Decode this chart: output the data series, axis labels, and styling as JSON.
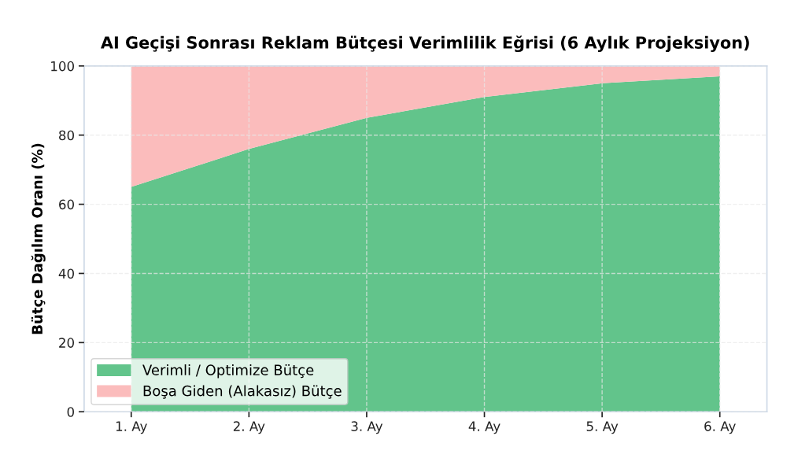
{
  "chart_data": {
    "type": "area",
    "title": "AI Geçişi Sonrası Reklam Bütçesi Verimlilik Eğrisi (6 Aylık Projeksiyon)",
    "ylabel": "Bütçe Dağılım Oranı (%)",
    "categories": [
      "1. Ay",
      "2. Ay",
      "3. Ay",
      "4. Ay",
      "5. Ay",
      "6. Ay"
    ],
    "series": [
      {
        "name": "Verimli / Optimize Bütçe",
        "color": "#62c48b",
        "values": [
          65,
          76,
          85,
          91,
          95,
          97
        ]
      },
      {
        "name": "Boşa Giden (Alakasız) Bütçe",
        "color": "#fbbcbc",
        "values": [
          35,
          24,
          15,
          9,
          5,
          3
        ]
      }
    ],
    "stacked": true,
    "ylim": [
      0,
      100
    ],
    "yticks": [
      0,
      20,
      40,
      60,
      80,
      100
    ],
    "grid": true,
    "legend": "bottom left"
  }
}
